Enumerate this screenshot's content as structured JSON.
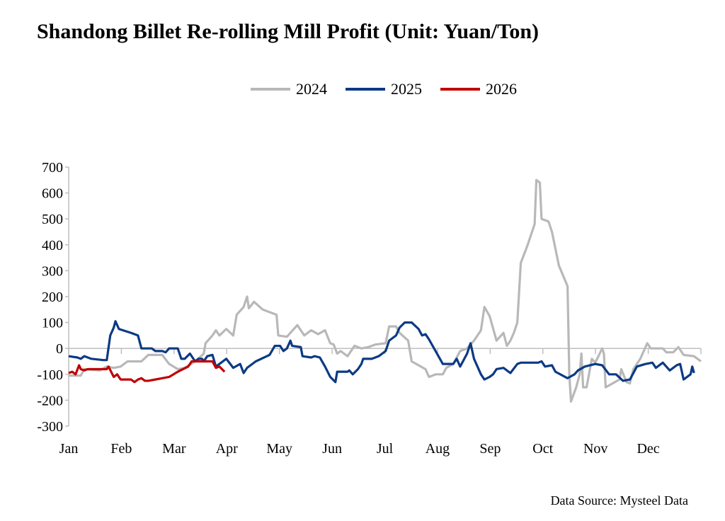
{
  "title": "Shandong Billet Re-rolling Mill Profit (Unit: Yuan/Ton)",
  "source": "Data Source: Mysteel Data",
  "chart_data": {
    "type": "line",
    "title": "Shandong Billet Re-rolling Mill Profit (Unit: Yuan/Ton)",
    "xlabel": "",
    "ylabel": "",
    "x_unit": "day of year",
    "xlim": [
      0,
      365
    ],
    "ylim": [
      -300,
      700
    ],
    "yticks": [
      -300,
      -200,
      -100,
      0,
      100,
      200,
      300,
      400,
      500,
      600,
      700
    ],
    "xtick_labels": [
      "Jan",
      "Feb",
      "Mar",
      "Apr",
      "May",
      "Jun",
      "Jul",
      "Aug",
      "Sep",
      "Oct",
      "Nov",
      "Dec"
    ],
    "legend_position": "top-center",
    "grid": false,
    "series": [
      {
        "name": "2024",
        "color": "#b8b8b8",
        "points": [
          [
            0,
            -105
          ],
          [
            7,
            -105
          ],
          [
            9,
            -80
          ],
          [
            18,
            -85
          ],
          [
            22,
            -70
          ],
          [
            26,
            -75
          ],
          [
            30,
            -70
          ],
          [
            34,
            -50
          ],
          [
            42,
            -50
          ],
          [
            46,
            -25
          ],
          [
            54,
            -25
          ],
          [
            58,
            -60
          ],
          [
            63,
            -80
          ],
          [
            67,
            -75
          ],
          [
            73,
            -50
          ],
          [
            78,
            -20
          ],
          [
            79,
            20
          ],
          [
            83,
            50
          ],
          [
            85,
            70
          ],
          [
            87,
            50
          ],
          [
            91,
            75
          ],
          [
            95,
            50
          ],
          [
            97,
            130
          ],
          [
            101,
            160
          ],
          [
            103,
            200
          ],
          [
            104,
            155
          ],
          [
            107,
            180
          ],
          [
            112,
            150
          ],
          [
            118,
            135
          ],
          [
            120,
            130
          ],
          [
            121,
            50
          ],
          [
            126,
            45
          ],
          [
            128,
            60
          ],
          [
            132,
            90
          ],
          [
            136,
            50
          ],
          [
            140,
            70
          ],
          [
            144,
            55
          ],
          [
            148,
            70
          ],
          [
            151,
            20
          ],
          [
            153,
            15
          ],
          [
            155,
            -20
          ],
          [
            157,
            -10
          ],
          [
            161,
            -30
          ],
          [
            165,
            10
          ],
          [
            169,
            0
          ],
          [
            173,
            5
          ],
          [
            177,
            15
          ],
          [
            183,
            20
          ],
          [
            185,
            85
          ],
          [
            189,
            85
          ],
          [
            191,
            60
          ],
          [
            196,
            30
          ],
          [
            198,
            -50
          ],
          [
            206,
            -80
          ],
          [
            208,
            -110
          ],
          [
            212,
            -100
          ],
          [
            216,
            -100
          ],
          [
            218,
            -75
          ],
          [
            222,
            -60
          ],
          [
            226,
            -10
          ],
          [
            230,
            0
          ],
          [
            234,
            30
          ],
          [
            238,
            70
          ],
          [
            240,
            160
          ],
          [
            243,
            125
          ],
          [
            247,
            30
          ],
          [
            251,
            60
          ],
          [
            253,
            10
          ],
          [
            255,
            30
          ],
          [
            257,
            60
          ],
          [
            259,
            100
          ],
          [
            261,
            330
          ],
          [
            265,
            400
          ],
          [
            269,
            480
          ],
          [
            270,
            650
          ],
          [
            272,
            640
          ],
          [
            273,
            500
          ],
          [
            277,
            490
          ],
          [
            279,
            450
          ],
          [
            283,
            320
          ],
          [
            288,
            240
          ],
          [
            289,
            -100
          ],
          [
            290,
            -205
          ],
          [
            293,
            -150
          ],
          [
            295,
            -100
          ],
          [
            296,
            -20
          ],
          [
            297,
            -150
          ],
          [
            299,
            -150
          ],
          [
            302,
            -40
          ],
          [
            304,
            -55
          ],
          [
            308,
            0
          ],
          [
            309,
            -20
          ],
          [
            310,
            -150
          ],
          [
            314,
            -135
          ],
          [
            318,
            -120
          ],
          [
            319,
            -80
          ],
          [
            322,
            -130
          ],
          [
            324,
            -135
          ],
          [
            326,
            -80
          ],
          [
            330,
            -40
          ],
          [
            334,
            20
          ],
          [
            336,
            0
          ],
          [
            340,
            0
          ],
          [
            343,
            0
          ],
          [
            345,
            -15
          ],
          [
            349,
            -15
          ],
          [
            352,
            5
          ],
          [
            355,
            -25
          ],
          [
            361,
            -30
          ],
          [
            365,
            -50
          ]
        ]
      },
      {
        "name": "2025",
        "color": "#0b3a84",
        "points": [
          [
            0,
            -30
          ],
          [
            5,
            -35
          ],
          [
            7,
            -40
          ],
          [
            9,
            -30
          ],
          [
            13,
            -40
          ],
          [
            20,
            -45
          ],
          [
            22,
            -45
          ],
          [
            24,
            50
          ],
          [
            26,
            80
          ],
          [
            27,
            105
          ],
          [
            29,
            75
          ],
          [
            36,
            60
          ],
          [
            40,
            50
          ],
          [
            42,
            0
          ],
          [
            48,
            0
          ],
          [
            50,
            -10
          ],
          [
            54,
            -10
          ],
          [
            56,
            -15
          ],
          [
            58,
            0
          ],
          [
            63,
            0
          ],
          [
            65,
            -40
          ],
          [
            67,
            -40
          ],
          [
            70,
            -20
          ],
          [
            73,
            -50
          ],
          [
            75,
            -40
          ],
          [
            77,
            -40
          ],
          [
            78,
            -50
          ],
          [
            80,
            -30
          ],
          [
            83,
            -25
          ],
          [
            85,
            -70
          ],
          [
            87,
            -60
          ],
          [
            91,
            -40
          ],
          [
            95,
            -75
          ],
          [
            99,
            -60
          ],
          [
            101,
            -95
          ],
          [
            103,
            -75
          ],
          [
            108,
            -50
          ],
          [
            116,
            -25
          ],
          [
            119,
            10
          ],
          [
            122,
            10
          ],
          [
            124,
            -10
          ],
          [
            126,
            0
          ],
          [
            128,
            30
          ],
          [
            129,
            10
          ],
          [
            134,
            5
          ],
          [
            135,
            -30
          ],
          [
            140,
            -35
          ],
          [
            142,
            -30
          ],
          [
            145,
            -35
          ],
          [
            148,
            -70
          ],
          [
            151,
            -110
          ],
          [
            154,
            -130
          ],
          [
            155,
            -90
          ],
          [
            161,
            -90
          ],
          [
            162,
            -85
          ],
          [
            164,
            -100
          ],
          [
            167,
            -80
          ],
          [
            169,
            -60
          ],
          [
            170,
            -40
          ],
          [
            175,
            -40
          ],
          [
            179,
            -30
          ],
          [
            183,
            -10
          ],
          [
            185,
            30
          ],
          [
            189,
            50
          ],
          [
            191,
            80
          ],
          [
            194,
            100
          ],
          [
            198,
            100
          ],
          [
            202,
            75
          ],
          [
            204,
            50
          ],
          [
            206,
            55
          ],
          [
            208,
            35
          ],
          [
            216,
            -60
          ],
          [
            222,
            -60
          ],
          [
            224,
            -40
          ],
          [
            226,
            -70
          ],
          [
            230,
            -20
          ],
          [
            232,
            20
          ],
          [
            234,
            -40
          ],
          [
            238,
            -100
          ],
          [
            240,
            -120
          ],
          [
            243,
            -110
          ],
          [
            245,
            -100
          ],
          [
            247,
            -80
          ],
          [
            251,
            -75
          ],
          [
            255,
            -95
          ],
          [
            259,
            -60
          ],
          [
            261,
            -55
          ],
          [
            271,
            -55
          ],
          [
            273,
            -50
          ],
          [
            275,
            -70
          ],
          [
            279,
            -65
          ],
          [
            281,
            -90
          ],
          [
            288,
            -115
          ],
          [
            292,
            -100
          ],
          [
            294,
            -85
          ],
          [
            298,
            -70
          ],
          [
            304,
            -60
          ],
          [
            308,
            -65
          ],
          [
            312,
            -100
          ],
          [
            316,
            -100
          ],
          [
            320,
            -125
          ],
          [
            324,
            -120
          ],
          [
            328,
            -70
          ],
          [
            333,
            -60
          ],
          [
            337,
            -55
          ],
          [
            339,
            -75
          ],
          [
            343,
            -55
          ],
          [
            347,
            -85
          ],
          [
            351,
            -65
          ],
          [
            353,
            -60
          ],
          [
            355,
            -120
          ],
          [
            359,
            -100
          ],
          [
            360,
            -70
          ],
          [
            361,
            -95
          ]
        ]
      },
      {
        "name": "2026",
        "color": "#c00000",
        "points": [
          [
            0,
            -95
          ],
          [
            2,
            -90
          ],
          [
            4,
            -100
          ],
          [
            6,
            -65
          ],
          [
            7,
            -80
          ],
          [
            9,
            -85
          ],
          [
            11,
            -80
          ],
          [
            22,
            -80
          ],
          [
            23,
            -70
          ],
          [
            26,
            -110
          ],
          [
            28,
            -100
          ],
          [
            30,
            -120
          ],
          [
            36,
            -120
          ],
          [
            38,
            -130
          ],
          [
            40,
            -120
          ],
          [
            42,
            -115
          ],
          [
            44,
            -125
          ],
          [
            46,
            -125
          ],
          [
            50,
            -120
          ],
          [
            54,
            -115
          ],
          [
            58,
            -110
          ],
          [
            63,
            -90
          ],
          [
            69,
            -70
          ],
          [
            71,
            -50
          ],
          [
            83,
            -50
          ],
          [
            85,
            -75
          ],
          [
            87,
            -70
          ],
          [
            90,
            -90
          ]
        ]
      }
    ]
  }
}
